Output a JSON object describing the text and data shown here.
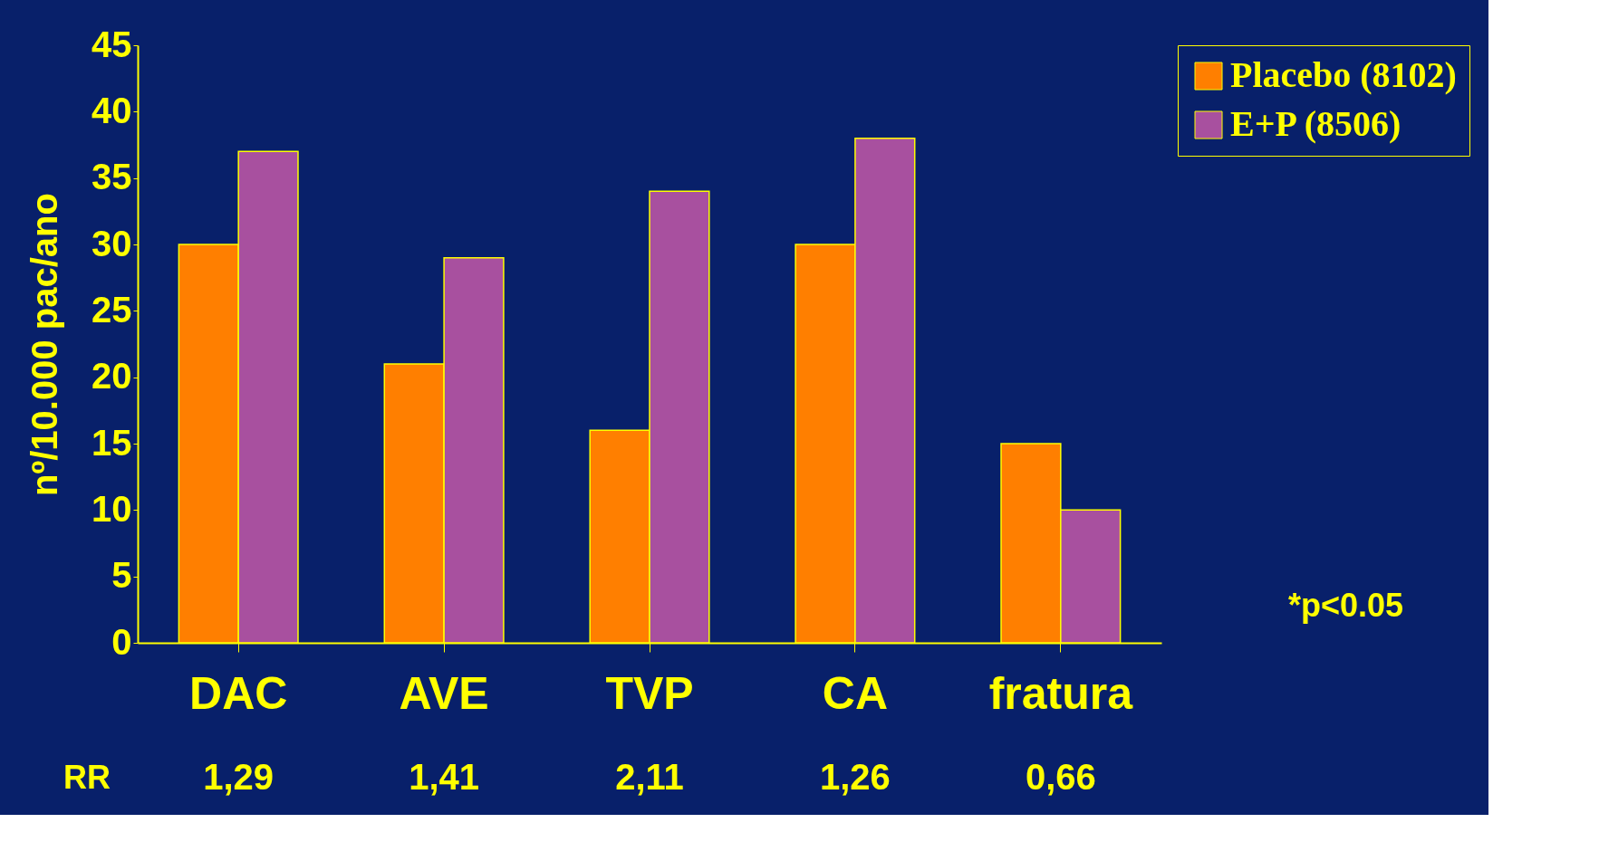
{
  "chart_data": {
    "type": "bar",
    "ylabel": "nº/10.000 pac/ano",
    "categories": [
      "DAC",
      "AVE",
      "TVP",
      "CA",
      "fratura"
    ],
    "series": [
      {
        "name": "Placebo (8102)",
        "color": "#ff7f00",
        "values": [
          30,
          21,
          16,
          30,
          15
        ]
      },
      {
        "name": "E+P (8506)",
        "color": "#a8509f",
        "values": [
          37,
          29,
          34,
          38,
          10
        ]
      }
    ],
    "ylim": [
      0,
      45
    ],
    "yticks": [
      0,
      5,
      10,
      15,
      20,
      25,
      30,
      35,
      40,
      45
    ],
    "grid": false,
    "legend": "right",
    "annotations": [
      "RR",
      "1,29",
      "1,41",
      "2,11",
      "1,26",
      "0,66",
      "*p<0.05"
    ]
  }
}
